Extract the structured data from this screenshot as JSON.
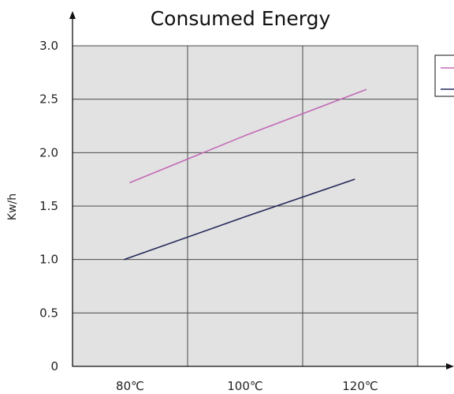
{
  "chart_data": {
    "type": "line",
    "title": "Consumed Energy",
    "xlabel": "",
    "ylabel": "Kw/h",
    "x_tick_labels": [
      "80℃",
      "100℃",
      "120℃"
    ],
    "y_tick_labels": [
      "0",
      "0.5",
      "1.0",
      "1.5",
      "2.0",
      "2.5",
      "3.0"
    ],
    "y_ticks": [
      0,
      0.5,
      1.0,
      1.5,
      2.0,
      2.5,
      3.0
    ],
    "xlim": [
      70,
      130
    ],
    "ylim": [
      0,
      3.0
    ],
    "grid": true,
    "x_grid": [
      90,
      110
    ],
    "legend_position": "top-right",
    "series": [
      {
        "color": "#c469b8",
        "x": [
          80,
          100,
          121
        ],
        "values": [
          1.72,
          2.16,
          2.59
        ]
      },
      {
        "color": "#23285a",
        "x": [
          79,
          100,
          119
        ],
        "values": [
          1.0,
          1.4,
          1.75
        ]
      }
    ]
  },
  "colors": {
    "plot_background": "#e1e2e1",
    "grid": "#4a4a4a",
    "axis": "#111111"
  }
}
